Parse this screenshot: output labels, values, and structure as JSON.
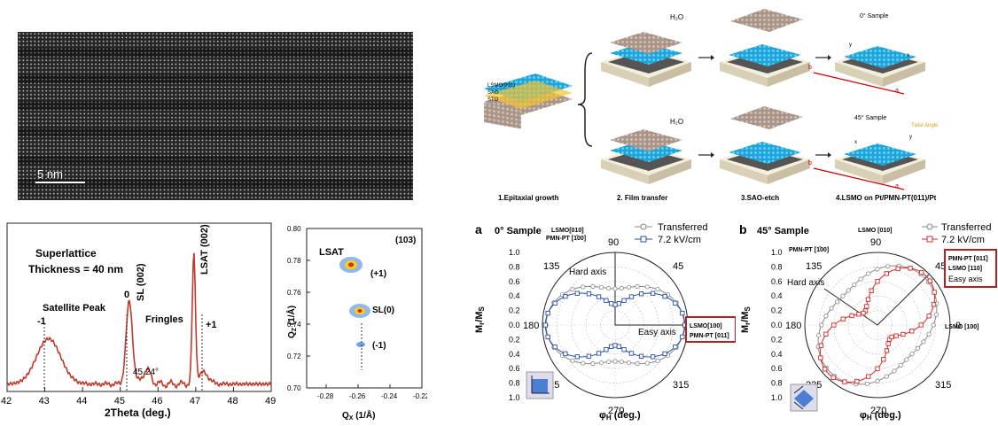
{
  "tem": {
    "scale_label": "5 nm"
  },
  "xrd": {
    "xlabel": "2Theta (deg.)",
    "ticks": [
      "42",
      "43",
      "44",
      "45",
      "46",
      "47",
      "48",
      "49"
    ],
    "title_line1": "Superlattice",
    "title_line2": "Thickness = 40 nm",
    "peak_lsat": "LSAT (002)",
    "peak_sl": "SL (002)",
    "order_0": "0",
    "order_m1": "-1",
    "order_p1": "+1",
    "satellite": "Satellite Peak",
    "fringes": "Fringles",
    "angle": "45.24°"
  },
  "rsm": {
    "xlabel": "Q",
    "xlabel_sub": "X",
    "xlabel_unit": " (1/Å)",
    "ylabel": "Q",
    "ylabel_sub": "Z",
    "ylabel_unit": " (1/Å)",
    "xticks": [
      "-0.28",
      "-0.26",
      "-0.24",
      "-0.22"
    ],
    "yticks": [
      "0.80",
      "0.78",
      "0.76",
      "0.74",
      "0.72",
      "0.70"
    ],
    "refl": "(103)",
    "lsat": "LSAT",
    "p1": "(+1)",
    "sl0": "SL(0)",
    "m1": "(-1)"
  },
  "schematic": {
    "stack_labels": [
      "LSMO(001)",
      "SAO",
      "STO"
    ],
    "h2o_1": "H₂O",
    "h2o_2": "H₂O",
    "sample0": "0° Sample",
    "sample45": "45° Sample",
    "twist": "Twist Angle",
    "step1": "1.Epitaxial growth",
    "step2": "2. Film transfer",
    "step3": "3.SAO-etch",
    "step4": "4.LSMO on Pt/PMN-PT(011)/Pt",
    "axis_a": "a",
    "axis_b": "b",
    "axis_x": "x",
    "axis_y": "y"
  },
  "polar_a": {
    "letter": "a",
    "sample": "0° Sample",
    "legend1": "Transferred",
    "legend2": "7.2 kV/cm",
    "top_label1": "LSMO[010]",
    "top_label2": "PMN-PT [1̄00]",
    "hard": "Hard axis",
    "easy": "Easy axis",
    "box1": "LSMO[100]",
    "box2": "PMN-PT [011̄]",
    "angles": [
      "90",
      "45",
      "0",
      "315",
      "270",
      "225",
      "180",
      "135"
    ],
    "ylabel": "M",
    "ylabel_sub1": "r",
    "ylabel_mid": "/M",
    "ylabel_sub2": "S",
    "rticks": [
      "1.0",
      "0.8",
      "0.6",
      "0.4",
      "0.2",
      "0.0",
      "0.2",
      "0.4",
      "0.6",
      "0.8",
      "1.0"
    ],
    "xlabel": "φ",
    "xlabel_sub": "H",
    "xlabel_unit": " (deg.)"
  },
  "polar_b": {
    "letter": "b",
    "sample": "45° Sample",
    "legend1": "Transferred",
    "legend2": "7.2 kV/cm",
    "top_label": "LSMO [010]",
    "left_label": "PMN-PT [1̄00]",
    "hard": "Hard axis",
    "box1": "PMN-PT [011̄]",
    "box2": "LSMO [110]",
    "box3": "Easy axis",
    "right_label": "LSMO [100]",
    "angles": [
      "90",
      "45",
      "0",
      "315",
      "270",
      "225",
      "180",
      "135"
    ],
    "ylabel": "M",
    "ylabel_sub1": "r",
    "ylabel_mid": "/M",
    "ylabel_sub2": "S",
    "rticks": [
      "1.0",
      "0.8",
      "0.6",
      "0.4",
      "0.2",
      "0.0",
      "0.2",
      "0.4",
      "0.6",
      "0.8",
      "1.0"
    ],
    "xlabel": "φ",
    "xlabel_sub": "H",
    "xlabel_unit": " (deg.)"
  },
  "colors": {
    "xrd": "#c0392b",
    "blue": "#2b4ea8",
    "red": "#d42a2a",
    "grey": "#888888",
    "box": "#b22222"
  }
}
